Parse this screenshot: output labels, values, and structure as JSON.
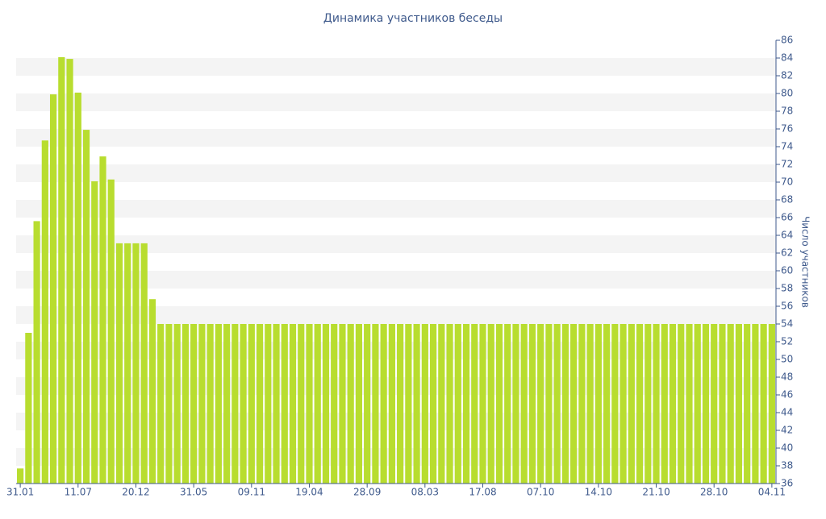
{
  "chart_data": {
    "type": "bar",
    "title": "Динамика участников беседы",
    "y_label": "Число участников",
    "categories": [
      "31.01",
      null,
      null,
      null,
      null,
      null,
      null,
      "11.07",
      null,
      null,
      null,
      null,
      null,
      null,
      "20.12",
      null,
      null,
      null,
      null,
      null,
      null,
      "31.05",
      null,
      null,
      null,
      null,
      null,
      null,
      "09.11",
      null,
      null,
      null,
      null,
      null,
      null,
      "19.04",
      null,
      null,
      null,
      null,
      null,
      null,
      "28.09",
      null,
      null,
      null,
      null,
      null,
      null,
      "08.03",
      null,
      null,
      null,
      null,
      null,
      null,
      "17.08",
      null,
      null,
      null,
      null,
      null,
      null,
      "07.10",
      null,
      null,
      null,
      null,
      null,
      null,
      "14.10",
      null,
      null,
      null,
      null,
      null,
      null,
      "21.10",
      null,
      null,
      null,
      null,
      null,
      null,
      "28.10",
      null,
      null,
      null,
      null,
      null,
      null,
      "04.11"
    ],
    "values": [
      37.7,
      53,
      65.6,
      74.7,
      79.9,
      84.1,
      83.9,
      80.1,
      75.9,
      70.1,
      72.9,
      70.3,
      63.1,
      63.1,
      63.1,
      63.1,
      56.8,
      54,
      54,
      54,
      54,
      54,
      54,
      54,
      54,
      54,
      54,
      54,
      54,
      54,
      54,
      54,
      54,
      54,
      54,
      54,
      54,
      54,
      54,
      54,
      54,
      54,
      54,
      54,
      54,
      54,
      54,
      54,
      54,
      54,
      54,
      54,
      54,
      54,
      54,
      54,
      54,
      54,
      54,
      54,
      54,
      54,
      54,
      54,
      54,
      54,
      54,
      54,
      54,
      54,
      54,
      54,
      54,
      54,
      54,
      54,
      54,
      54,
      54,
      54,
      54,
      54,
      54,
      54,
      54,
      54,
      54,
      54,
      54,
      54,
      54,
      54
    ],
    "color": "#b8dd2f",
    "ylim": [
      36,
      86
    ],
    "yticks": [
      36,
      38,
      40,
      42,
      44,
      46,
      48,
      50,
      52,
      54,
      56,
      58,
      60,
      62,
      64,
      66,
      68,
      70,
      72,
      74,
      76,
      78,
      80,
      82,
      84,
      86
    ],
    "y_axis_side": "right",
    "grid": true
  }
}
